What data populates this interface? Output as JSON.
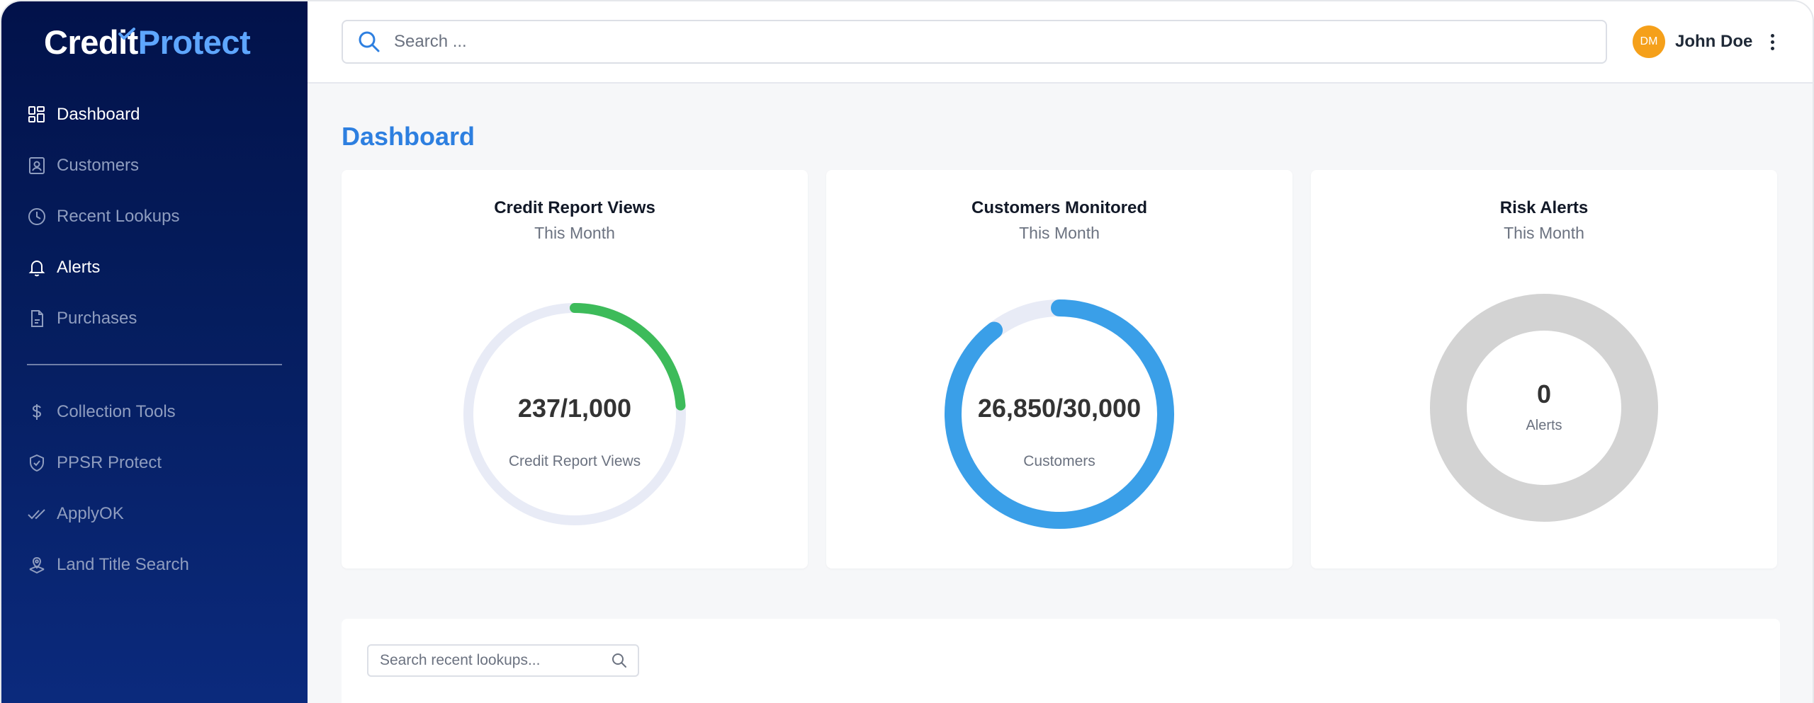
{
  "brand": {
    "part1": "Credit",
    "part2": "Protect",
    "accent": "#5ea6ff"
  },
  "sidebar": {
    "items": [
      {
        "label": "Dashboard",
        "icon": "dashboard-grid-icon",
        "active": true
      },
      {
        "label": "Customers",
        "icon": "contact-card-icon",
        "active": false
      },
      {
        "label": "Recent Lookups",
        "icon": "clock-icon",
        "active": false
      },
      {
        "label": "Alerts",
        "icon": "bell-icon",
        "active": true
      },
      {
        "label": "Purchases",
        "icon": "document-icon",
        "active": false
      },
      {
        "label": "Collection Tools",
        "icon": "dollar-icon",
        "active": false
      },
      {
        "label": "PPSR Protect",
        "icon": "shield-check-icon",
        "active": false
      },
      {
        "label": "ApplyOK",
        "icon": "double-check-icon",
        "active": false
      },
      {
        "label": "Land Title Search",
        "icon": "map-pin-icon",
        "active": false
      }
    ]
  },
  "topbar": {
    "search_placeholder": "Search ...",
    "user": {
      "initials": "DM",
      "name": "John Doe"
    }
  },
  "main": {
    "title": "Dashboard",
    "cards": [
      {
        "title": "Credit Report Views",
        "subtitle": "This Month",
        "value_text": "237/1,000",
        "label": "Credit Report Views",
        "progress": 0.237,
        "color": "#3dbb5a",
        "track": "#e8ebf6"
      },
      {
        "title": "Customers Monitored",
        "subtitle": "This Month",
        "value_text": "26,850/30,000",
        "label": "Customers",
        "progress": 0.895,
        "color": "#3a9fe8",
        "track": "#e8ebf6"
      },
      {
        "title": "Risk Alerts",
        "subtitle": "This Month",
        "value_text": "0",
        "label": "Alerts",
        "progress": 0,
        "color": "#d3d3d3",
        "track": "#d3d3d3"
      }
    ],
    "lookups": {
      "search_placeholder": "Search recent lookups..."
    }
  }
}
